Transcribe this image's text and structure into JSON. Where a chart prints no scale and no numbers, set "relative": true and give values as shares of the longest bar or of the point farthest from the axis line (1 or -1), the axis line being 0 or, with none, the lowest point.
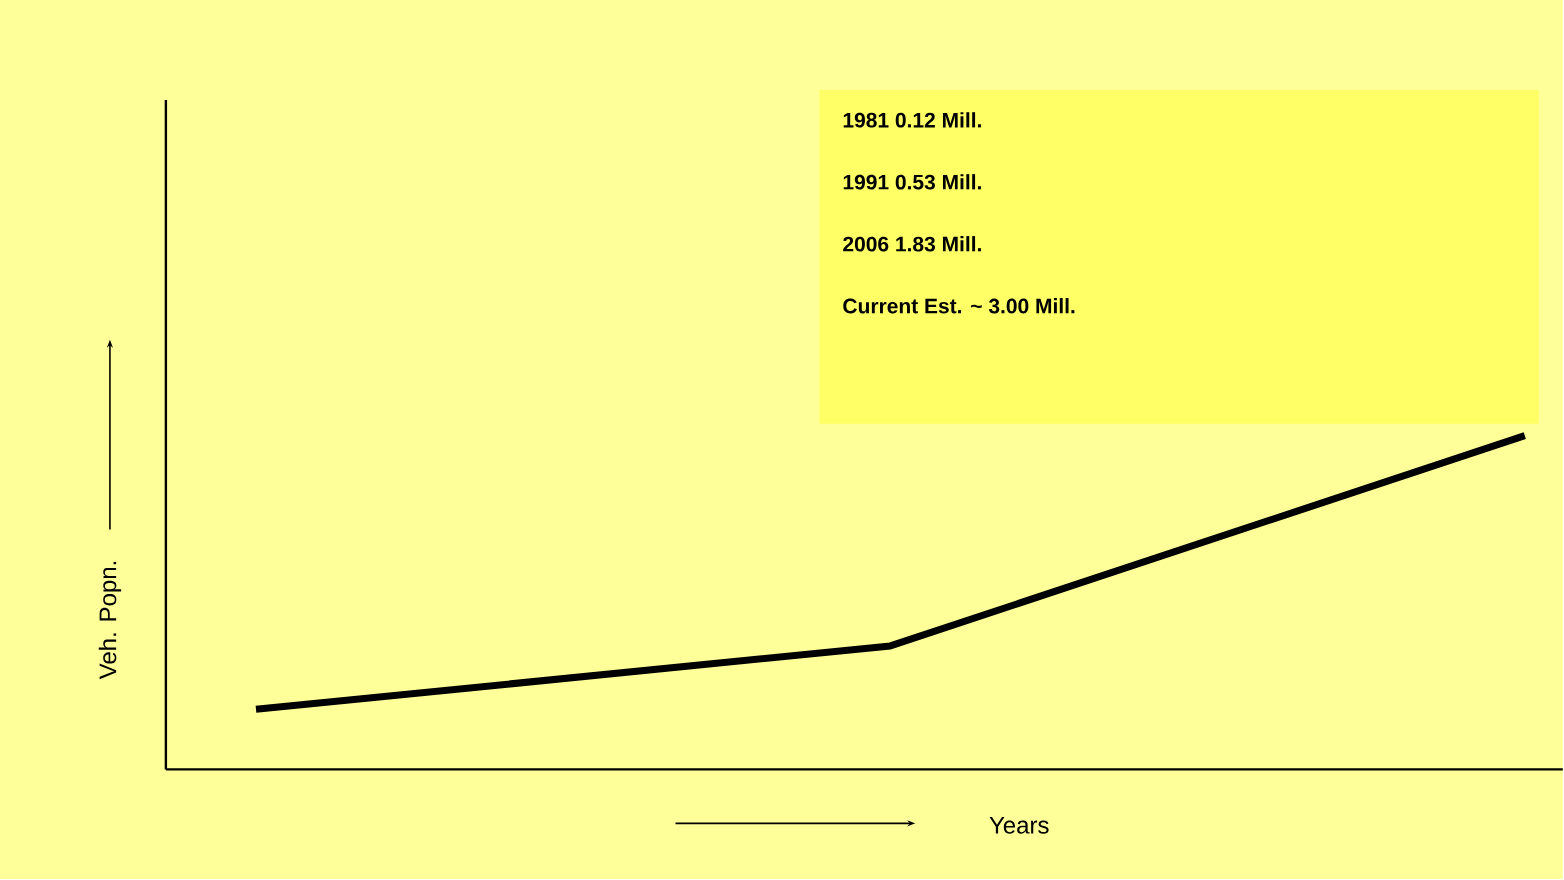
{
  "chart_data": {
    "type": "line",
    "relative": true,
    "xlabel": "Years",
    "ylabel": "Veh. Popn.",
    "categories": [
      null,
      null,
      null
    ],
    "series": [
      {
        "color": "#000000",
        "values": [
          0.18,
          0.37,
          1.0
        ]
      }
    ],
    "marker": "none",
    "line_style": "solid",
    "annotations": [
      "**1981**      **0.12 Mill.**",
      "**1991**       **0.53 Mill.**",
      "**2006**      **1.83 Mill.**",
      "**Current Est. ~ 3.00 Mill.**"
    ]
  }
}
